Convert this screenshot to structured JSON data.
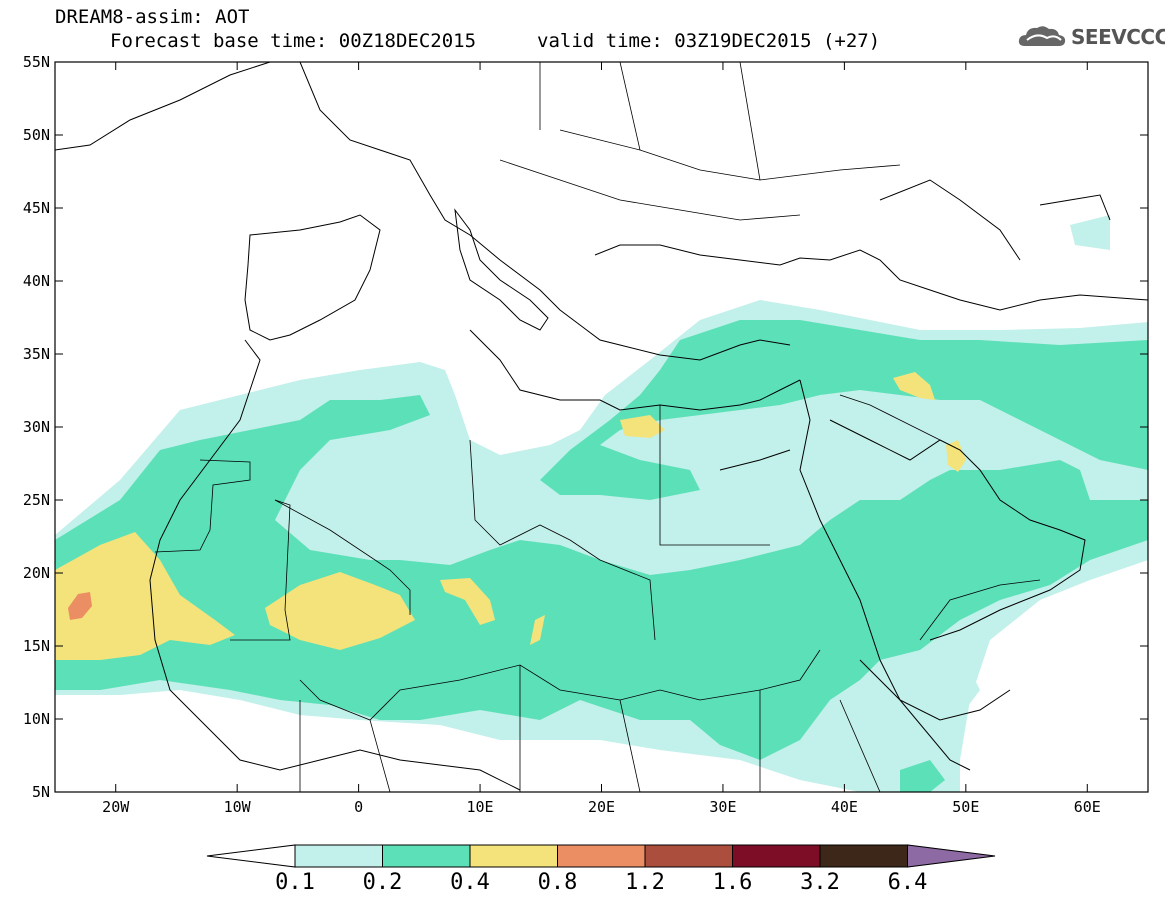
{
  "header": {
    "title": "DREAM8-assim: AOT",
    "base_time": "Forecast base time: 00Z18DEC2015",
    "valid_time": "valid time: 03Z19DEC2015 (+27)",
    "logo_text": "SEEVCCC"
  },
  "map": {
    "lon_range": [
      -25,
      65
    ],
    "lat_range": [
      5,
      55
    ],
    "lat_ticks": [
      "5N",
      "10N",
      "15N",
      "20N",
      "25N",
      "30N",
      "35N",
      "40N",
      "45N",
      "50N",
      "55N"
    ],
    "lon_ticks": [
      "20W",
      "10W",
      "0",
      "10E",
      "20E",
      "30E",
      "40E",
      "50E",
      "60E"
    ]
  },
  "colorbar": {
    "labels": [
      "0.1",
      "0.2",
      "0.4",
      "0.8",
      "1.2",
      "1.6",
      "3.2",
      "6.4"
    ],
    "colors": [
      "#c2f0ea",
      "#5ce0b8",
      "#f4e37a",
      "#eb8e64",
      "#ab4e3e",
      "#7d0c26",
      "#3d2718",
      "#8e6aa4"
    ]
  }
}
